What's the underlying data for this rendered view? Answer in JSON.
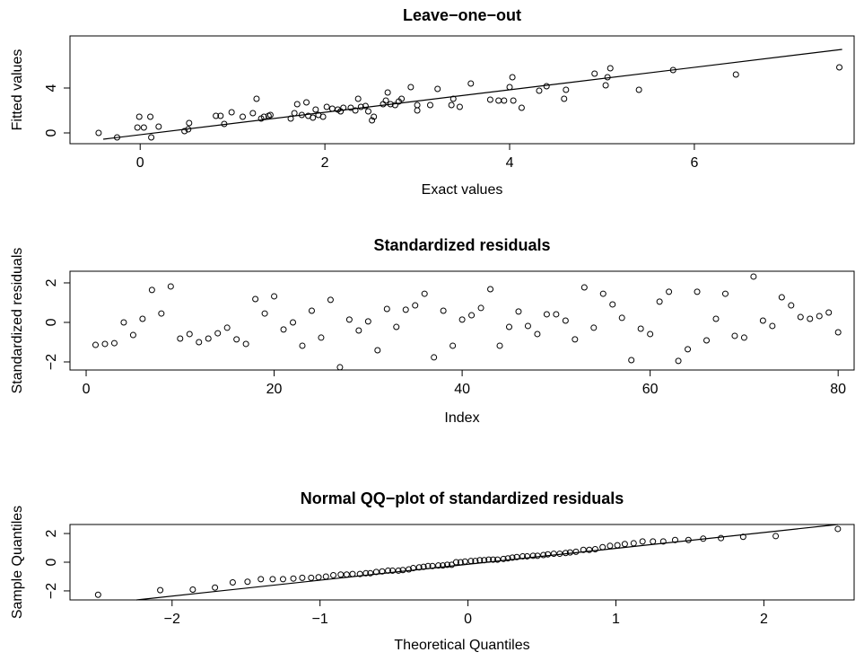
{
  "chart_data": [
    {
      "type": "scatter",
      "title": "Leave−one−out",
      "x_label": "Exact values",
      "y_label": "Fitted values",
      "xlim": [
        -0.76,
        7.73
      ],
      "ylim": [
        -0.96,
        8.64
      ],
      "xticks": [
        0,
        2,
        4,
        6
      ],
      "yticks": [
        0,
        4
      ],
      "x": [
        -0.45,
        -0.25,
        -0.03,
        -0.01,
        0.04,
        0.11,
        0.12,
        0.2,
        0.48,
        0.52,
        0.53,
        0.82,
        0.87,
        0.91,
        0.99,
        1.11,
        1.22,
        1.26,
        1.31,
        1.34,
        1.39,
        1.41,
        1.63,
        1.67,
        1.7,
        1.75,
        1.8,
        1.82,
        1.87,
        1.9,
        1.93,
        1.98,
        2.02,
        2.08,
        2.14,
        2.17,
        2.2,
        2.28,
        2.33,
        2.36,
        2.39,
        2.44,
        2.47,
        2.51,
        2.53,
        2.63,
        2.66,
        2.68,
        2.71,
        2.76,
        2.8,
        2.83,
        2.93,
        3.0,
        3.0,
        3.14,
        3.22,
        3.37,
        3.39,
        3.46,
        3.58,
        3.79,
        3.88,
        3.94,
        4.0,
        4.03,
        4.04,
        4.13,
        4.32,
        4.4,
        4.59,
        4.61,
        4.92,
        5.04,
        5.06,
        5.09,
        5.4,
        5.77,
        6.45,
        7.57
      ],
      "y": [
        0,
        -0.4,
        0.48,
        1.44,
        0.48,
        1.44,
        -0.4,
        0.56,
        0.16,
        0.32,
        0.88,
        1.52,
        1.52,
        0.8,
        1.84,
        1.44,
        1.76,
        3.04,
        1.28,
        1.44,
        1.52,
        1.6,
        1.28,
        1.76,
        2.56,
        1.6,
        2.72,
        1.52,
        1.36,
        2.08,
        1.6,
        1.44,
        2.32,
        2.16,
        2.08,
        1.92,
        2.24,
        2.24,
        2.0,
        3.04,
        2.32,
        2.4,
        1.92,
        1.12,
        1.44,
        2.56,
        2.88,
        3.6,
        2.56,
        2.48,
        2.8,
        3.04,
        4.08,
        2.48,
        2.0,
        2.48,
        3.92,
        2.48,
        3.04,
        2.32,
        4.4,
        2.96,
        2.88,
        2.88,
        4.08,
        4.96,
        2.88,
        2.24,
        3.76,
        4.16,
        3.04,
        3.84,
        5.28,
        4.24,
        4.96,
        5.76,
        3.84,
        5.6,
        5.2,
        5.84
      ],
      "line": {
        "x": [
          -0.4,
          7.6
        ],
        "y": [
          -0.56,
          7.44
        ]
      }
    },
    {
      "type": "scatter",
      "title": "Standardized residuals",
      "x_label": "Index",
      "y_label": "Standardized residuals",
      "xlim": [
        -1.72,
        81.7
      ],
      "ylim": [
        -2.41,
        2.59
      ],
      "xticks": [
        0,
        20,
        40,
        60,
        80
      ],
      "yticks": [
        {
          "value": -2,
          "label": "−2"
        },
        0,
        2
      ],
      "x": [
        1,
        2,
        3,
        4,
        5,
        6,
        7,
        8,
        9,
        10,
        11,
        12,
        13,
        14,
        15,
        16,
        17,
        18,
        19,
        20,
        21,
        22,
        23,
        24,
        25,
        26,
        27,
        28,
        29,
        30,
        31,
        32,
        33,
        34,
        35,
        36,
        37,
        38,
        39,
        40,
        41,
        42,
        43,
        44,
        45,
        46,
        47,
        48,
        49,
        50,
        51,
        52,
        53,
        54,
        55,
        56,
        57,
        58,
        59,
        60,
        61,
        62,
        63,
        64,
        65,
        66,
        67,
        68,
        69,
        70,
        71,
        72,
        73,
        74,
        75,
        76,
        77,
        78,
        79,
        80
      ],
      "y": [
        -1.14,
        -1.09,
        -1.05,
        0,
        -0.64,
        0.18,
        1.64,
        0.45,
        1.82,
        -0.82,
        -0.59,
        -1.0,
        -0.82,
        -0.55,
        -0.27,
        -0.86,
        -1.09,
        1.18,
        0.45,
        1.32,
        -0.36,
        0,
        -1.18,
        0.59,
        -0.77,
        1.14,
        -2.27,
        0.14,
        -0.41,
        0.05,
        -1.41,
        0.68,
        -0.23,
        0.64,
        0.86,
        1.45,
        -1.77,
        0.59,
        -1.18,
        0.14,
        0.36,
        0.73,
        1.68,
        -1.18,
        -0.23,
        0.55,
        -0.18,
        -0.59,
        0.41,
        0.41,
        0.09,
        -0.86,
        1.77,
        -0.27,
        1.45,
        0.91,
        0.23,
        -1.91,
        -0.32,
        -0.59,
        1.05,
        1.55,
        -1.95,
        -1.36,
        1.55,
        -0.91,
        0.18,
        1.45,
        -0.68,
        -0.77,
        2.32,
        0.09,
        -0.18,
        1.27,
        0.86,
        0.27,
        0.18,
        0.32,
        0.5,
        -0.5
      ]
    },
    {
      "type": "scatter",
      "title": "Normal QQ−plot of standardized residuals",
      "x_label": "Theoretical Quantiles",
      "y_label": "Sample Quantiles",
      "xlim": [
        -2.69,
        2.61
      ],
      "ylim": [
        -2.63,
        2.63
      ],
      "xticks": [
        {
          "value": -2,
          "label": "−2"
        },
        {
          "value": -1,
          "label": "−1"
        },
        0,
        1,
        2
      ],
      "yticks": [
        {
          "value": -2,
          "label": "−2"
        },
        0,
        2
      ],
      "x": [
        -2.5,
        -2.08,
        -1.86,
        -1.71,
        -1.59,
        -1.49,
        -1.4,
        -1.32,
        -1.25,
        -1.18,
        -1.12,
        -1.06,
        -1.01,
        -0.96,
        -0.91,
        -0.86,
        -0.82,
        -0.78,
        -0.73,
        -0.69,
        -0.66,
        -0.62,
        -0.58,
        -0.54,
        -0.51,
        -0.47,
        -0.44,
        -0.4,
        -0.37,
        -0.33,
        -0.3,
        -0.27,
        -0.24,
        -0.2,
        -0.17,
        -0.14,
        -0.11,
        -0.08,
        -0.05,
        -0.02,
        0.02,
        0.05,
        0.08,
        0.11,
        0.14,
        0.17,
        0.2,
        0.24,
        0.27,
        0.3,
        0.33,
        0.37,
        0.4,
        0.44,
        0.47,
        0.51,
        0.54,
        0.58,
        0.62,
        0.66,
        0.69,
        0.73,
        0.78,
        0.82,
        0.86,
        0.91,
        0.96,
        1.01,
        1.06,
        1.12,
        1.18,
        1.25,
        1.32,
        1.4,
        1.49,
        1.59,
        1.71,
        1.86,
        2.08,
        2.5
      ],
      "y": [
        -2.27,
        -1.95,
        -1.91,
        -1.77,
        -1.41,
        -1.36,
        -1.18,
        -1.18,
        -1.18,
        -1.14,
        -1.09,
        -1.09,
        -1.05,
        -1.0,
        -0.91,
        -0.86,
        -0.86,
        -0.82,
        -0.82,
        -0.77,
        -0.77,
        -0.68,
        -0.64,
        -0.59,
        -0.59,
        -0.59,
        -0.55,
        -0.5,
        -0.41,
        -0.36,
        -0.32,
        -0.27,
        -0.27,
        -0.23,
        -0.23,
        -0.18,
        -0.18,
        0,
        0,
        0.05,
        0.09,
        0.09,
        0.14,
        0.14,
        0.18,
        0.18,
        0.18,
        0.23,
        0.27,
        0.32,
        0.36,
        0.41,
        0.41,
        0.45,
        0.45,
        0.5,
        0.55,
        0.59,
        0.59,
        0.64,
        0.68,
        0.73,
        0.86,
        0.86,
        0.91,
        1.05,
        1.14,
        1.18,
        1.27,
        1.32,
        1.45,
        1.45,
        1.45,
        1.55,
        1.55,
        1.64,
        1.68,
        1.77,
        1.82,
        2.32
      ],
      "line": {
        "x": [
          -2.24,
          2.5
        ],
        "y": [
          -2.63,
          2.63
        ]
      }
    }
  ]
}
